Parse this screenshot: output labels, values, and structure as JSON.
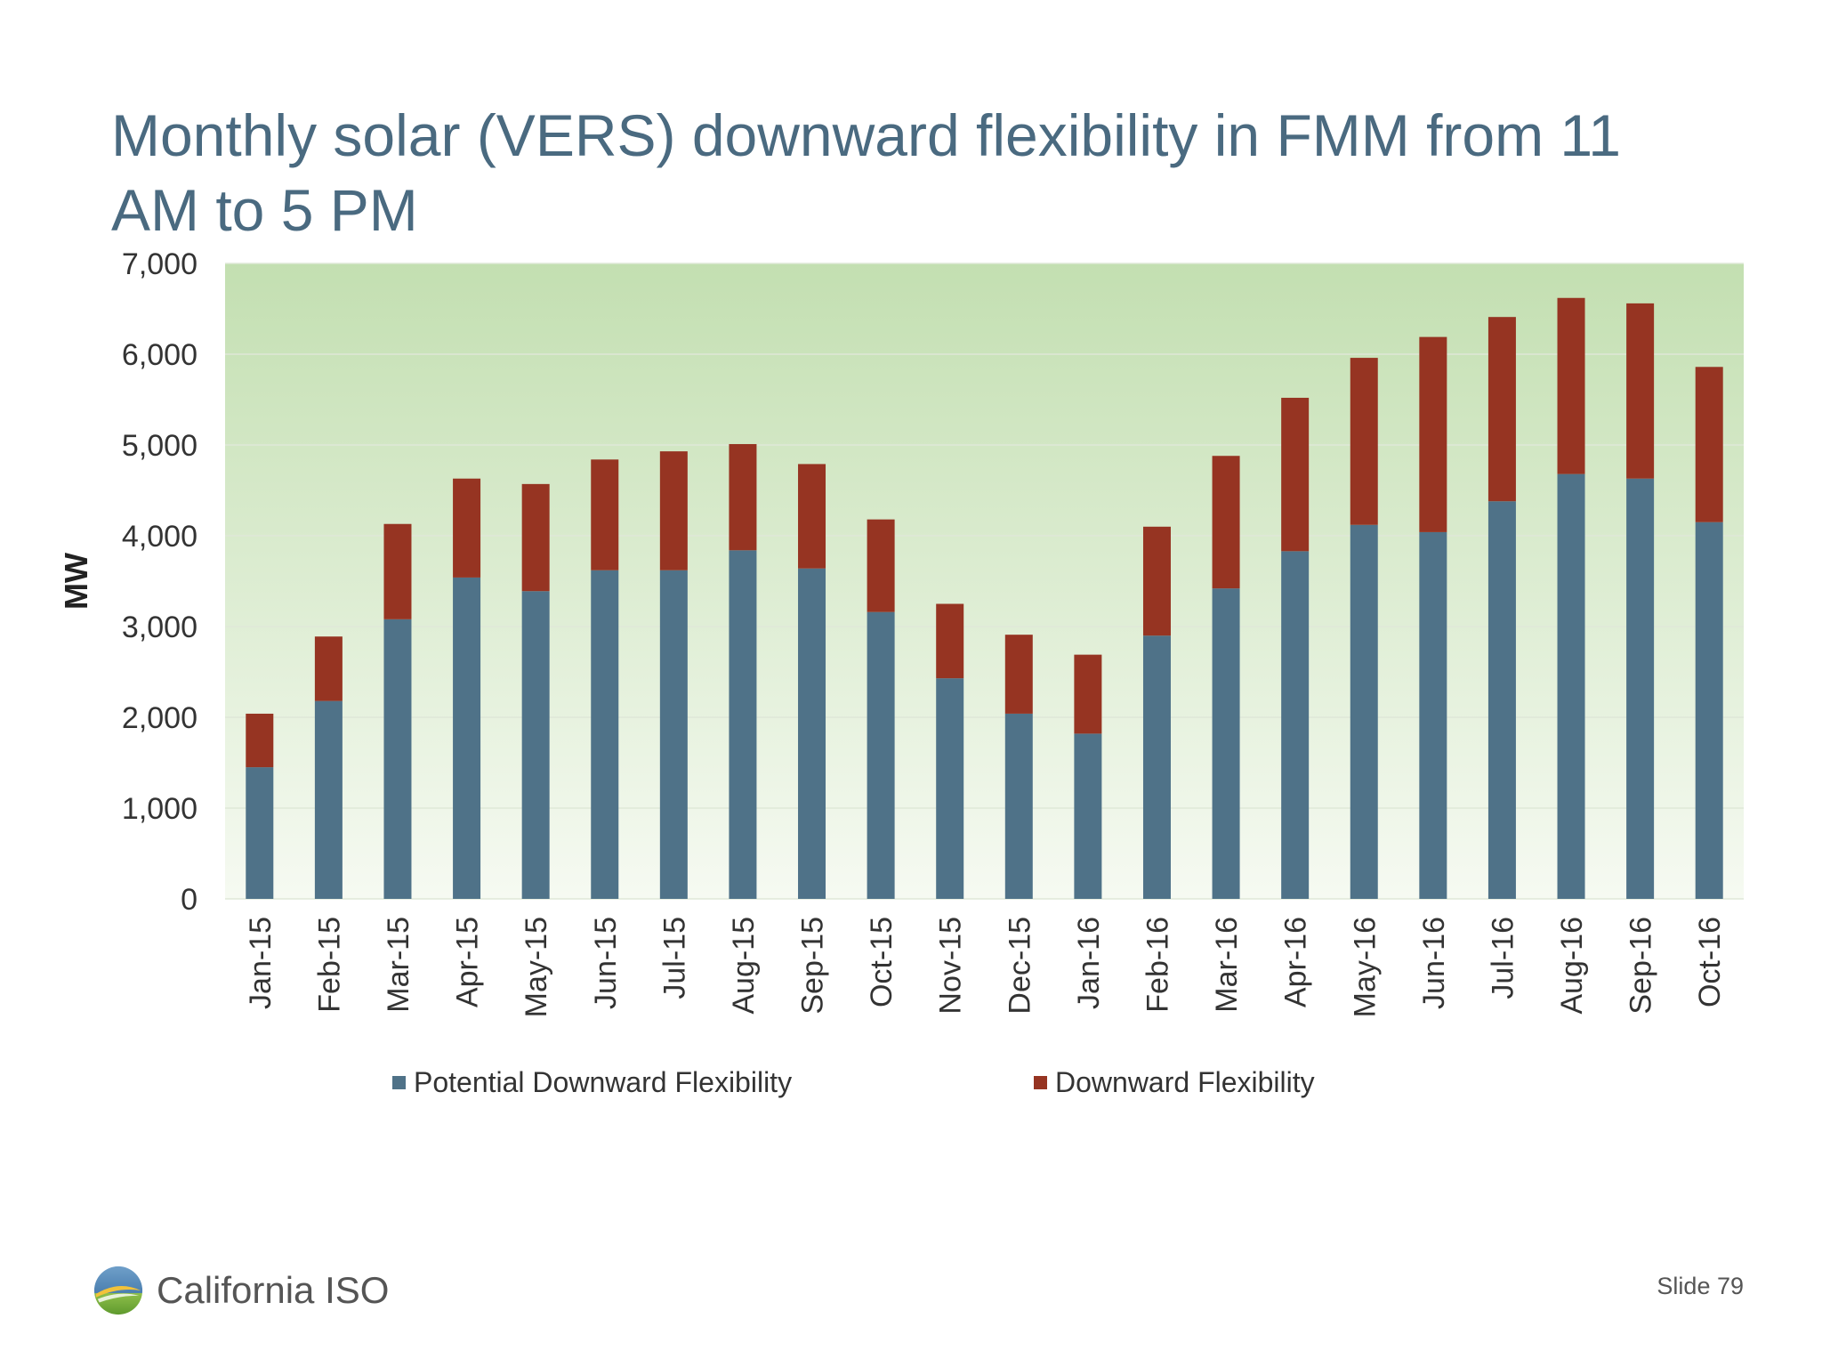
{
  "slide": {
    "title": "Monthly solar (VERS) downward flexibility in FMM from 11 AM to 5 PM",
    "slide_number": "Slide 79",
    "logo_text": "California ISO"
  },
  "colors": {
    "title": "#4a6a80",
    "potential": "#4f7288",
    "downward": "#963422",
    "plot_bg_top": "#c3dfb1",
    "plot_bg_bottom": "#f6faf2"
  },
  "chart_data": {
    "type": "bar",
    "stacked": true,
    "ylabel": "MW",
    "xlabel": "",
    "ylim": [
      0,
      7000
    ],
    "yticks": [
      0,
      1000,
      2000,
      3000,
      4000,
      5000,
      6000,
      7000
    ],
    "ytick_labels": [
      "0",
      "1,000",
      "2,000",
      "3,000",
      "4,000",
      "5,000",
      "6,000",
      "7,000"
    ],
    "grid": true,
    "legend_position": "bottom",
    "categories": [
      "Jan-15",
      "Feb-15",
      "Mar-15",
      "Apr-15",
      "May-15",
      "Jun-15",
      "Jul-15",
      "Aug-15",
      "Sep-15",
      "Oct-15",
      "Nov-15",
      "Dec-15",
      "Jan-16",
      "Feb-16",
      "Mar-16",
      "Apr-16",
      "May-16",
      "Jun-16",
      "Jul-16",
      "Aug-16",
      "Sep-16",
      "Oct-16"
    ],
    "series": [
      {
        "name": "Potential Downward Flexibility",
        "values": [
          1450,
          2180,
          3080,
          3540,
          3390,
          3620,
          3620,
          3840,
          3640,
          3160,
          2430,
          2040,
          1820,
          2900,
          3420,
          3830,
          4120,
          4040,
          4380,
          4680,
          4630,
          4150
        ]
      },
      {
        "name": "Downward Flexibility",
        "values": [
          590,
          710,
          1050,
          1090,
          1180,
          1220,
          1310,
          1170,
          1150,
          1020,
          820,
          870,
          870,
          1200,
          1460,
          1690,
          1840,
          2150,
          2030,
          1940,
          1930,
          1710
        ]
      }
    ]
  }
}
